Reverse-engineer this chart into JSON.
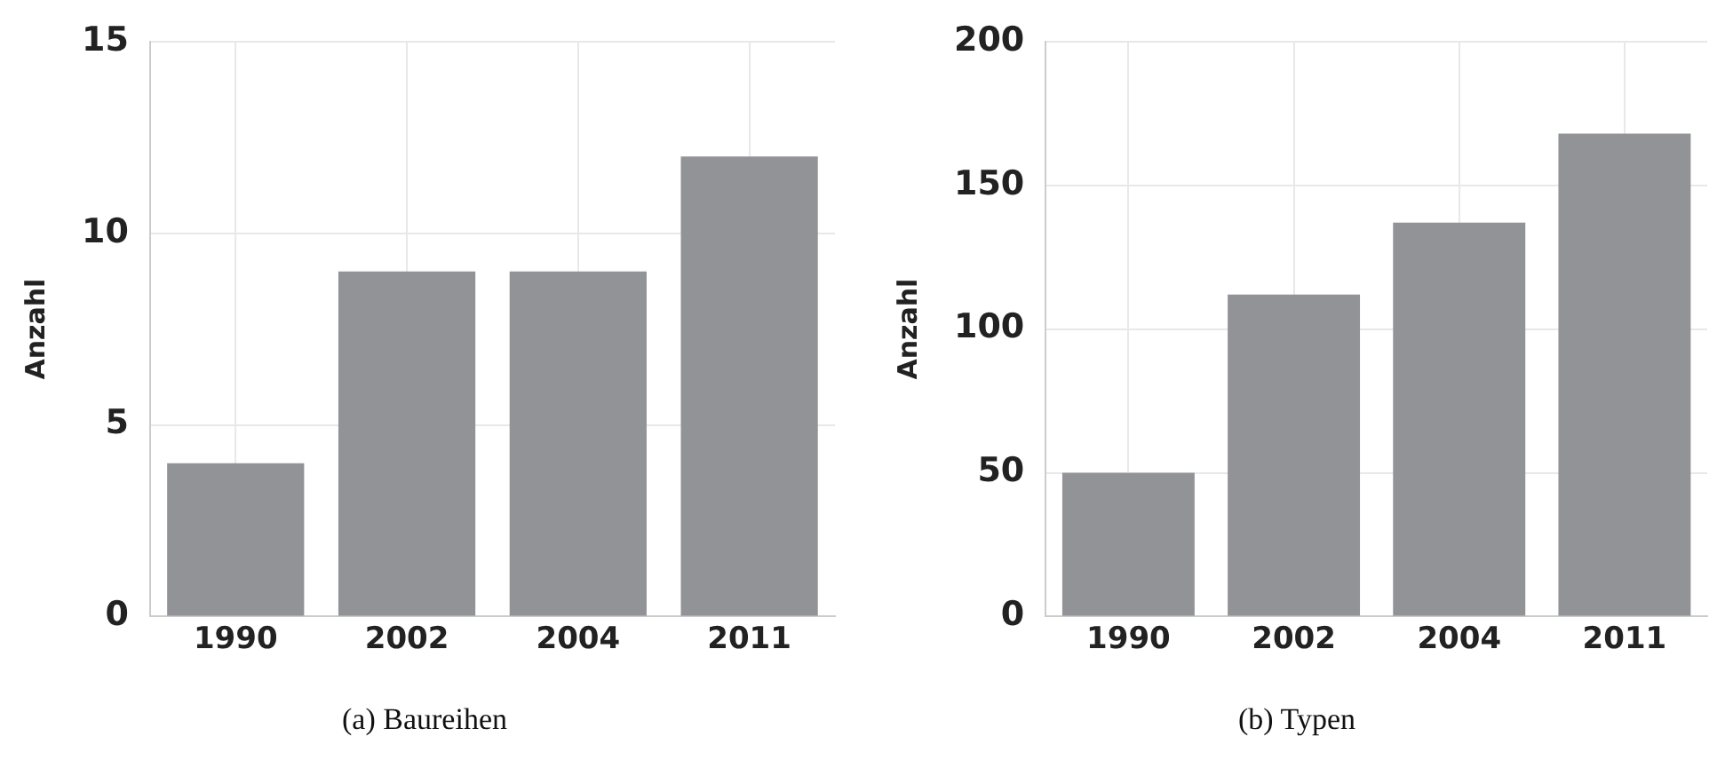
{
  "chart_data": [
    {
      "type": "bar",
      "title": "(a) Baureihen",
      "ylabel": "Anzahl",
      "categories": [
        "1990",
        "2002",
        "2004",
        "2011"
      ],
      "values": [
        4,
        9,
        9,
        12
      ],
      "color": "#929396",
      "ylim": [
        0,
        15
      ],
      "yticks": [
        0,
        5,
        10,
        15
      ],
      "grid": true
    },
    {
      "type": "bar",
      "title": "(b) Typen",
      "ylabel": "Anzahl",
      "categories": [
        "1990",
        "2002",
        "2004",
        "2011"
      ],
      "values": [
        50,
        112,
        137,
        168
      ],
      "color": "#929396",
      "ylim": [
        0,
        200
      ],
      "yticks": [
        0,
        50,
        100,
        150,
        200
      ],
      "grid": true
    }
  ]
}
